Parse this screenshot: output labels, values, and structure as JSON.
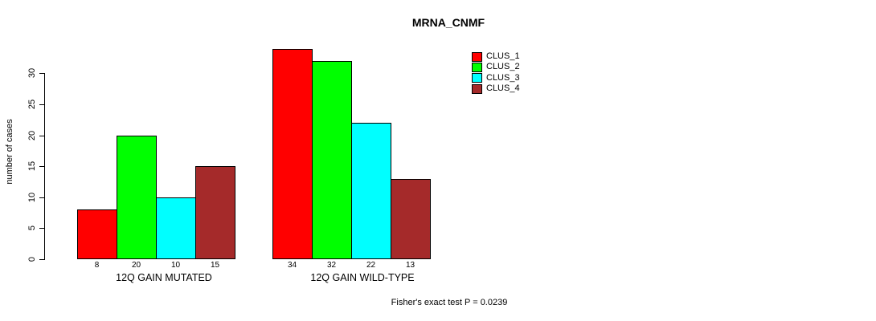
{
  "title": "MRNA_CNMF",
  "footer": "Fisher's exact test P = 0.0239",
  "y_axis": {
    "label": "number of cases",
    "ticks": [
      0,
      5,
      10,
      15,
      20,
      25,
      30
    ]
  },
  "chart_data": {
    "type": "bar",
    "title": "MRNA_CNMF",
    "categories": [
      "12Q GAIN MUTATED",
      "12Q GAIN WILD-TYPE"
    ],
    "series": [
      {
        "name": "CLUS_1",
        "color": "#FF0000",
        "values": [
          8,
          34
        ]
      },
      {
        "name": "CLUS_2",
        "color": "#00FF00",
        "values": [
          20,
          32
        ]
      },
      {
        "name": "CLUS_3",
        "color": "#00FFFF",
        "values": [
          10,
          22
        ]
      },
      {
        "name": "CLUS_4",
        "color": "#A52A2A",
        "values": [
          15,
          13
        ]
      }
    ],
    "bar_value_labels": [
      [
        8,
        20,
        10,
        15
      ],
      [
        34,
        32,
        22,
        13
      ]
    ],
    "xlabel": "",
    "ylabel": "number of cases",
    "ylim": [
      0,
      30
    ],
    "grid": false,
    "legend_position": "top-right",
    "annotation": "Fisher's exact test P = 0.0239"
  }
}
